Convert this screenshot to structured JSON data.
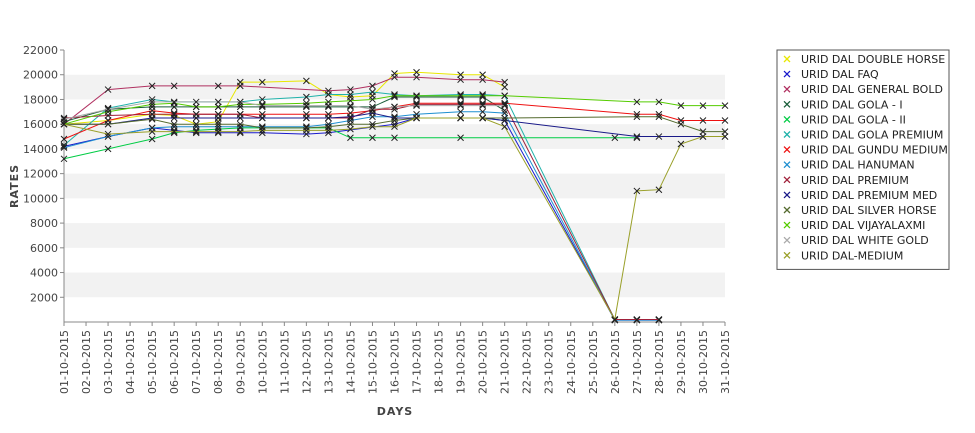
{
  "chart_data": {
    "type": "line",
    "title": "",
    "xlabel": "DAYS",
    "ylabel": "RATES",
    "ylim": [
      0,
      22000
    ],
    "y_ticks": [
      2000,
      4000,
      6000,
      8000,
      10000,
      12000,
      14000,
      16000,
      18000,
      20000,
      22000
    ],
    "grid": "alternating horizontal bands",
    "legend_placement": "right",
    "categories": [
      "01-10-2015",
      "02-10-2015",
      "03-10-2015",
      "04-10-2015",
      "05-10-2015",
      "06-10-2015",
      "07-10-2015",
      "08-10-2015",
      "09-10-2015",
      "10-10-2015",
      "11-10-2015",
      "12-10-2015",
      "13-10-2015",
      "14-10-2015",
      "15-10-2015",
      "16-10-2015",
      "17-10-2015",
      "18-10-2015",
      "19-10-2015",
      "20-10-2015",
      "21-10-2015",
      "22-10-2015",
      "23-10-2015",
      "24-10-2015",
      "25-10-2015",
      "26-10-2015",
      "27-10-2015",
      "28-10-2015",
      "29-10-2015",
      "30-10-2015",
      "31-10-2015"
    ],
    "series": [
      {
        "name": "URID DAL DOUBLE HORSE",
        "color": "#e8e800",
        "values": [
          16000,
          null,
          16300,
          null,
          16800,
          16700,
          16000,
          16200,
          19400,
          19400,
          null,
          19500,
          18400,
          18200,
          18300,
          20100,
          20200,
          null,
          20000,
          20000,
          19000,
          null,
          null,
          null,
          null,
          null,
          null,
          null,
          null,
          null,
          null
        ]
      },
      {
        "name": "URID DAL FAQ",
        "color": "#1a1acc",
        "values": [
          14200,
          null,
          15000,
          null,
          15700,
          15500,
          15300,
          15300,
          15300,
          15300,
          null,
          15200,
          15300,
          null,
          null,
          16000,
          16500,
          null,
          16500,
          16500,
          16300,
          null,
          null,
          null,
          null,
          150,
          150,
          150,
          null,
          null,
          null
        ]
      },
      {
        "name": "URID DAL GENERAL BOLD",
        "color": "#b03060",
        "values": [
          16000,
          null,
          18800,
          null,
          19100,
          19100,
          null,
          19100,
          19100,
          null,
          null,
          null,
          18700,
          18800,
          19100,
          19800,
          19800,
          null,
          19600,
          19600,
          19400,
          null,
          null,
          null,
          null,
          null,
          null,
          null,
          null,
          null,
          null
        ]
      },
      {
        "name": "URID DAL GOLA - I",
        "color": "#1a5e3a",
        "values": [
          16200,
          null,
          17200,
          null,
          17400,
          17400,
          17400,
          17400,
          17400,
          17400,
          null,
          17400,
          17400,
          17400,
          17400,
          18200,
          18200,
          null,
          18200,
          18200,
          17100,
          null,
          null,
          null,
          null,
          null,
          null,
          null,
          null,
          null,
          null
        ]
      },
      {
        "name": "URID DAL GOLA - II",
        "color": "#00cc44",
        "values": [
          13200,
          null,
          14000,
          null,
          14800,
          15300,
          15500,
          15600,
          15700,
          15700,
          null,
          15700,
          15700,
          14900,
          14900,
          14900,
          null,
          null,
          14900,
          null,
          null,
          null,
          null,
          null,
          null,
          14900,
          14900,
          null,
          null,
          null,
          null
        ]
      },
      {
        "name": "URID DAL GOLA PREMIUM",
        "color": "#20b2aa",
        "values": [
          14300,
          null,
          17300,
          null,
          18000,
          17800,
          null,
          17800,
          17800,
          18000,
          null,
          18200,
          18400,
          18400,
          18600,
          18400,
          18300,
          null,
          18400,
          18400,
          18300,
          null,
          null,
          null,
          null,
          200,
          200,
          200,
          null,
          null,
          null
        ]
      },
      {
        "name": "URID DAL GUNDU MEDIUM",
        "color": "#ee1111",
        "values": [
          14800,
          null,
          16300,
          null,
          17100,
          16900,
          16800,
          16800,
          16800,
          16800,
          null,
          16800,
          16800,
          16900,
          17100,
          17400,
          17700,
          null,
          17700,
          17700,
          17700,
          null,
          null,
          null,
          null,
          null,
          16800,
          16800,
          16300,
          16300,
          16300
        ]
      },
      {
        "name": "URID DAL HANUMAN",
        "color": "#1e8fd0",
        "values": [
          14100,
          null,
          15000,
          null,
          15700,
          15800,
          15800,
          15800,
          15800,
          15800,
          null,
          15800,
          16000,
          16300,
          16600,
          16600,
          16800,
          null,
          17000,
          17000,
          16900,
          null,
          null,
          null,
          null,
          150,
          150,
          150,
          null,
          null,
          null
        ]
      },
      {
        "name": "URID DAL PREMIUM",
        "color": "#a0203a",
        "values": [
          16500,
          null,
          16700,
          null,
          16800,
          16800,
          16800,
          16800,
          16800,
          16500,
          null,
          16500,
          16500,
          16500,
          17200,
          17200,
          17600,
          null,
          17600,
          17600,
          17600,
          null,
          null,
          null,
          null,
          200,
          200,
          200,
          null,
          null,
          null
        ]
      },
      {
        "name": "URID DAL PREMIUM MED",
        "color": "#1a1a88",
        "values": [
          16000,
          null,
          16000,
          null,
          16500,
          16500,
          16500,
          16500,
          16500,
          16500,
          null,
          16500,
          16500,
          16600,
          16900,
          16500,
          16500,
          null,
          16500,
          16500,
          16300,
          null,
          null,
          null,
          null,
          null,
          15000,
          15000,
          null,
          15000,
          15000
        ]
      },
      {
        "name": "URID DAL SILVER HORSE",
        "color": "#556b2f",
        "values": [
          16000,
          null,
          16000,
          null,
          16400,
          16000,
          16000,
          16000,
          16000,
          15700,
          null,
          15700,
          15800,
          16000,
          16000,
          16300,
          16500,
          null,
          16500,
          16500,
          16500,
          null,
          null,
          null,
          null,
          null,
          16600,
          16600,
          16000,
          15400,
          15400
        ]
      },
      {
        "name": "URID DAL VIJAYALAXMI",
        "color": "#55cc00",
        "values": [
          16000,
          null,
          17000,
          null,
          17600,
          17700,
          17400,
          17400,
          17600,
          17600,
          null,
          17700,
          17800,
          17900,
          18000,
          18300,
          18300,
          null,
          18300,
          18300,
          18300,
          null,
          null,
          null,
          null,
          null,
          17800,
          17800,
          17500,
          17500,
          17500
        ]
      },
      {
        "name": "URID DAL WHITE GOLD",
        "color": "#aaaaaa",
        "values": [
          16400,
          null,
          17200,
          null,
          17800,
          17800,
          17800,
          17800,
          17800,
          17500,
          null,
          17500,
          17500,
          17500,
          17200,
          17400,
          17500,
          null,
          17500,
          17500,
          17500,
          null,
          null,
          null,
          null,
          null,
          null,
          null,
          null,
          null,
          null
        ]
      },
      {
        "name": "URID DAL-MEDIUM",
        "color": "#9aa02a",
        "values": [
          16000,
          null,
          15200,
          null,
          15400,
          15400,
          15400,
          15400,
          15400,
          15500,
          null,
          15500,
          15500,
          15600,
          15800,
          15800,
          16500,
          null,
          16500,
          16500,
          15800,
          null,
          null,
          null,
          null,
          200,
          10600,
          10700,
          14400,
          15000,
          15000
        ]
      }
    ]
  }
}
